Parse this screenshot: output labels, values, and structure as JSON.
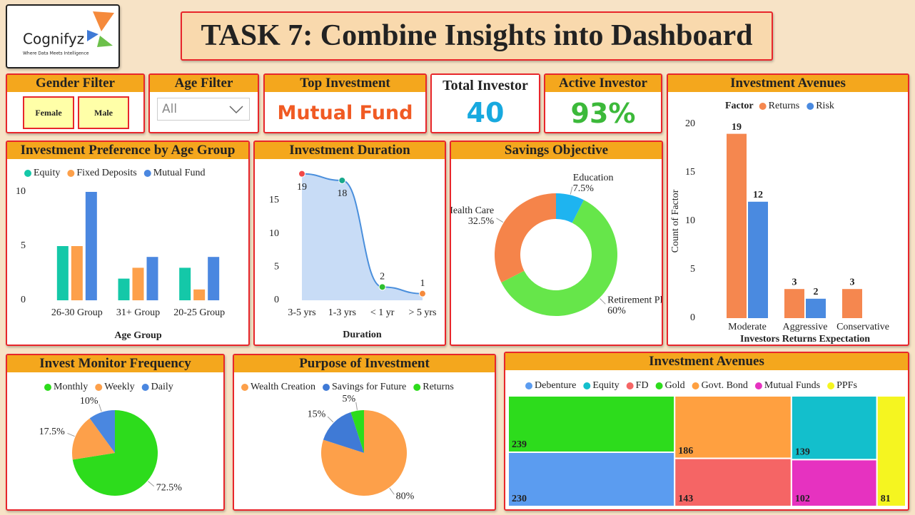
{
  "logo": {
    "name": "Cognifyz",
    "tagline": "Where Data Meets Intelligence"
  },
  "header": {
    "title": "TASK 7: Combine Insights into Dashboard"
  },
  "filters": {
    "gender": {
      "title": "Gender Filter",
      "options": [
        "Female",
        "Male"
      ]
    },
    "age": {
      "title": "Age Filter",
      "value": "All"
    }
  },
  "cards": [
    {
      "title": "Top Investment",
      "value": "Mutual Fund"
    },
    {
      "title": "Total Investor",
      "value": 40
    },
    {
      "title": "Active Investor",
      "value": "93%"
    }
  ],
  "chart_data": [
    {
      "type": "bar",
      "title": "Investment Preference by Age Group",
      "categories": [
        "26-30 Group",
        "31+ Group",
        "20-25 Group"
      ],
      "series": [
        {
          "name": "Equity",
          "color": "#14c8a8",
          "values": [
            5,
            2,
            3
          ]
        },
        {
          "name": "Fixed Deposits",
          "color": "#fda04a",
          "values": [
            5,
            3,
            1
          ]
        },
        {
          "name": "Mutual Fund",
          "color": "#4a87e0",
          "values": [
            10,
            4,
            4
          ]
        }
      ],
      "xlabel": "Age Group",
      "ylim": [
        0,
        10
      ],
      "yticks": [
        0,
        5,
        10
      ]
    },
    {
      "type": "line",
      "title": "Investment Duration",
      "categories": [
        "3-5 yrs",
        "1-3 yrs",
        "< 1 yr",
        "> 5 yrs"
      ],
      "values": [
        19,
        18,
        2,
        1
      ],
      "color": "#4a8fdc",
      "area_color": "#c8dcf6",
      "marker_colors": [
        "#f04848",
        "#17a88c",
        "#2fbf2f",
        "#f58a3c"
      ],
      "data_labels": true,
      "xlabel": "Duration",
      "ylim": [
        0,
        20
      ],
      "yticks": [
        0,
        5,
        10,
        15
      ]
    },
    {
      "type": "pie",
      "title": "Savings Objective",
      "donut": true,
      "categories": [
        "Education",
        "Retirement Plan",
        "Health Care"
      ],
      "values": [
        7.5,
        60,
        32.5
      ],
      "value_labels": [
        "7.5%",
        "60%",
        "32.5%"
      ],
      "colors": [
        "#1eb4f0",
        "#66e64a",
        "#f5844a"
      ]
    },
    {
      "type": "bar",
      "title": "Investment Avenues",
      "legend_title": "Factor",
      "categories": [
        "Moderate",
        "Aggressive",
        "Conservative"
      ],
      "series": [
        {
          "name": "Returns",
          "color": "#f5874f",
          "values": [
            19,
            3,
            3
          ]
        },
        {
          "name": "Risk",
          "color": "#4a8ae0",
          "values": [
            12,
            2,
            null
          ]
        }
      ],
      "data_labels": true,
      "xlabel": "Investors Returns Expectation",
      "ylabel": "Count of Factor",
      "ylim": [
        0,
        20
      ],
      "yticks": [
        0,
        5,
        10,
        15,
        20
      ]
    },
    {
      "type": "pie",
      "title": "Invest Monitor Frequency",
      "categories": [
        "Monthly",
        "Weekly",
        "Daily"
      ],
      "values": [
        72.5,
        17.5,
        10
      ],
      "value_labels": [
        "72.5%",
        "17.5%",
        "10%"
      ],
      "colors": [
        "#2ddc1c",
        "#fda04a",
        "#4a87e0"
      ],
      "legend": true
    },
    {
      "type": "pie",
      "title": "Purpose of Investment",
      "categories": [
        "Wealth Creation",
        "Savings for Future",
        "Returns"
      ],
      "values": [
        80,
        15,
        5
      ],
      "value_labels": [
        "80%",
        "15%",
        "5%"
      ],
      "colors": [
        "#fda04a",
        "#3f7ad6",
        "#2ddc1c"
      ],
      "legend": true
    },
    {
      "type": "treemap",
      "title": "Investment Avenues",
      "categories": [
        "Debenture",
        "Equity",
        "FD",
        "Gold",
        "Govt. Bond",
        "Mutual Funds",
        "PPFs"
      ],
      "values": [
        230,
        139,
        143,
        239,
        186,
        102,
        81
      ],
      "colors": [
        "#5b9cf0",
        "#13bfcc",
        "#f56565",
        "#2ddc1c",
        "#ffa040",
        "#e632c0",
        "#f5f520"
      ]
    }
  ]
}
